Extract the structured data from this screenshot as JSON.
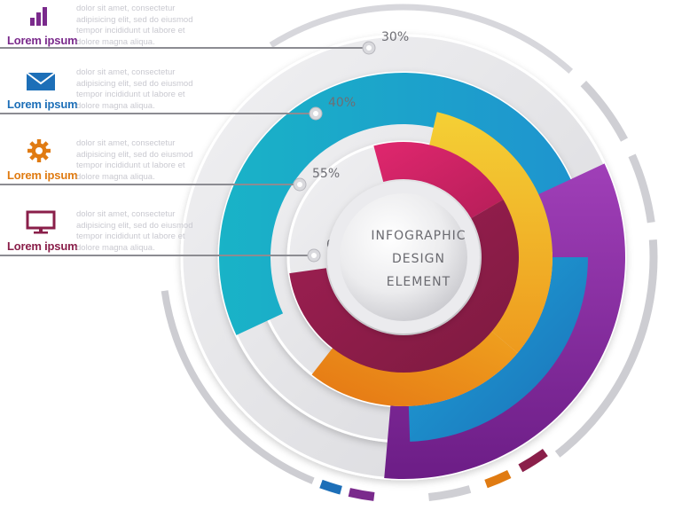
{
  "colors": {
    "purple": "#7a2a8c",
    "blue": "#1d6fb8",
    "orange": "#e07b12",
    "maroon": "#8a1f4a",
    "teal": "#1fb0c8",
    "yellow": "#f2c32c",
    "violet": "#8e2aa3",
    "pink": "#d8266a"
  },
  "legend": [
    {
      "title": "Lorem ipsum",
      "icon": "bar-chart-icon",
      "color": "#7a2a8c",
      "desc": "dolor sit amet, consectetur adipisicing elit, sed do eiusmod tempor incididunt ut labore et dolore magna aliqua."
    },
    {
      "title": "Lorem ipsum",
      "icon": "envelope-icon",
      "color": "#1d6fb8",
      "desc": "dolor sit amet, consectetur adipisicing elit, sed do eiusmod tempor incididunt ut labore et dolore magna aliqua."
    },
    {
      "title": "Lorem ipsum",
      "icon": "gear-icon",
      "color": "#e07b12",
      "desc": "dolor sit amet, consectetur adipisicing elit, sed do eiusmod tempor incididunt ut labore et dolore magna aliqua."
    },
    {
      "title": "Lorem ipsum",
      "icon": "monitor-icon",
      "color": "#8a1f4a",
      "desc": "dolor sit amet, consectetur adipisicing elit, sed do eiusmod tempor incididunt ut labore et dolore magna aliqua."
    }
  ],
  "rings": [
    {
      "label": "30%",
      "value": 0.3,
      "color": "#8e2aa3"
    },
    {
      "label": "40%",
      "value": 0.4,
      "color": "#f2c32c"
    },
    {
      "label": "55%",
      "value": 0.55,
      "color": "#d8266a"
    },
    {
      "label": "65%",
      "value": 0.65,
      "color": "#1fb0c8"
    }
  ],
  "center": {
    "line1": "INFOGRAPHIC",
    "line2": "DESIGN",
    "line3": "ELEMENT"
  }
}
